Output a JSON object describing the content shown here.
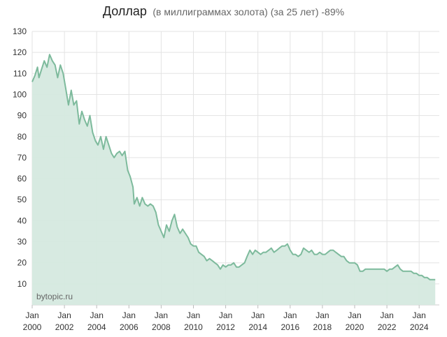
{
  "chart_data": {
    "type": "area",
    "title": "Доллар",
    "subtitle": "(в миллиграммах золота) (за 25 лет) -89%",
    "watermark": "bytopic.ru",
    "xlabel": "",
    "ylabel": "",
    "xlim": [
      2000.0,
      2025.25
    ],
    "ylim": [
      0,
      130
    ],
    "yticks": [
      10,
      20,
      30,
      40,
      50,
      60,
      70,
      80,
      90,
      100,
      110,
      120,
      130
    ],
    "xticks": [
      {
        "month": "Jan",
        "year": "2000",
        "x": 2000
      },
      {
        "month": "Jan",
        "year": "2002",
        "x": 2002
      },
      {
        "month": "Jan",
        "year": "2004",
        "x": 2004
      },
      {
        "month": "Jan",
        "year": "2006",
        "x": 2006
      },
      {
        "month": "Jan",
        "year": "2008",
        "x": 2008
      },
      {
        "month": "Jan",
        "year": "2010",
        "x": 2010
      },
      {
        "month": "Jan",
        "year": "2012",
        "x": 2012
      },
      {
        "month": "Jan",
        "year": "2014",
        "x": 2014
      },
      {
        "month": "Jan",
        "year": "2016",
        "x": 2016
      },
      {
        "month": "Jan",
        "year": "2018",
        "x": 2018
      },
      {
        "month": "Jan",
        "year": "2020",
        "x": 2020
      },
      {
        "month": "Jan",
        "year": "2022",
        "x": 2022
      },
      {
        "month": "Jan",
        "year": "2024",
        "x": 2024
      }
    ],
    "grid": true,
    "colors": {
      "line": "#7dba9c",
      "fill": "#d5e9df",
      "grid": "#e3e3e3"
    },
    "series": [
      {
        "points": [
          [
            2000.0,
            106
          ],
          [
            2000.17,
            109
          ],
          [
            2000.33,
            113
          ],
          [
            2000.42,
            108
          ],
          [
            2000.58,
            112
          ],
          [
            2000.75,
            116
          ],
          [
            2000.92,
            113
          ],
          [
            2001.08,
            119
          ],
          [
            2001.25,
            116
          ],
          [
            2001.42,
            114
          ],
          [
            2001.58,
            108
          ],
          [
            2001.75,
            114
          ],
          [
            2001.92,
            110
          ],
          [
            2002.08,
            103
          ],
          [
            2002.25,
            95
          ],
          [
            2002.42,
            102
          ],
          [
            2002.58,
            95
          ],
          [
            2002.75,
            97
          ],
          [
            2002.92,
            86
          ],
          [
            2003.08,
            92
          ],
          [
            2003.25,
            88
          ],
          [
            2003.42,
            85
          ],
          [
            2003.58,
            90
          ],
          [
            2003.75,
            82
          ],
          [
            2003.92,
            78
          ],
          [
            2004.08,
            76
          ],
          [
            2004.25,
            80
          ],
          [
            2004.42,
            74
          ],
          [
            2004.58,
            80
          ],
          [
            2004.75,
            76
          ],
          [
            2004.92,
            72
          ],
          [
            2005.08,
            70
          ],
          [
            2005.25,
            72
          ],
          [
            2005.42,
            73
          ],
          [
            2005.58,
            71
          ],
          [
            2005.75,
            73
          ],
          [
            2005.92,
            64
          ],
          [
            2006.08,
            61
          ],
          [
            2006.25,
            56
          ],
          [
            2006.33,
            48
          ],
          [
            2006.5,
            51
          ],
          [
            2006.67,
            47
          ],
          [
            2006.83,
            51
          ],
          [
            2007.0,
            48
          ],
          [
            2007.17,
            47
          ],
          [
            2007.33,
            48
          ],
          [
            2007.5,
            47
          ],
          [
            2007.67,
            44
          ],
          [
            2007.83,
            38
          ],
          [
            2008.0,
            35
          ],
          [
            2008.17,
            32
          ],
          [
            2008.33,
            38
          ],
          [
            2008.5,
            35
          ],
          [
            2008.67,
            40
          ],
          [
            2008.83,
            43
          ],
          [
            2009.0,
            37
          ],
          [
            2009.17,
            34
          ],
          [
            2009.33,
            36
          ],
          [
            2009.5,
            34
          ],
          [
            2009.67,
            32
          ],
          [
            2009.83,
            29
          ],
          [
            2010.0,
            28
          ],
          [
            2010.17,
            28
          ],
          [
            2010.33,
            25
          ],
          [
            2010.5,
            24
          ],
          [
            2010.67,
            23
          ],
          [
            2010.83,
            21
          ],
          [
            2011.0,
            22
          ],
          [
            2011.17,
            21
          ],
          [
            2011.33,
            20
          ],
          [
            2011.5,
            19
          ],
          [
            2011.67,
            17
          ],
          [
            2011.83,
            19
          ],
          [
            2012.0,
            18
          ],
          [
            2012.17,
            19
          ],
          [
            2012.33,
            19
          ],
          [
            2012.5,
            20
          ],
          [
            2012.67,
            18
          ],
          [
            2012.83,
            18
          ],
          [
            2013.0,
            19
          ],
          [
            2013.17,
            20
          ],
          [
            2013.33,
            23
          ],
          [
            2013.5,
            26
          ],
          [
            2013.67,
            24
          ],
          [
            2013.83,
            26
          ],
          [
            2014.0,
            25
          ],
          [
            2014.17,
            24
          ],
          [
            2014.33,
            25
          ],
          [
            2014.5,
            25
          ],
          [
            2014.67,
            26
          ],
          [
            2014.83,
            27
          ],
          [
            2015.0,
            25
          ],
          [
            2015.17,
            26
          ],
          [
            2015.33,
            27
          ],
          [
            2015.5,
            28
          ],
          [
            2015.67,
            28
          ],
          [
            2015.83,
            29
          ],
          [
            2016.0,
            26
          ],
          [
            2016.17,
            24
          ],
          [
            2016.33,
            24
          ],
          [
            2016.5,
            23
          ],
          [
            2016.67,
            24
          ],
          [
            2016.83,
            27
          ],
          [
            2017.0,
            26
          ],
          [
            2017.17,
            25
          ],
          [
            2017.33,
            26
          ],
          [
            2017.5,
            24
          ],
          [
            2017.67,
            24
          ],
          [
            2017.83,
            25
          ],
          [
            2018.0,
            24
          ],
          [
            2018.17,
            24
          ],
          [
            2018.33,
            25
          ],
          [
            2018.5,
            26
          ],
          [
            2018.67,
            26
          ],
          [
            2018.83,
            25
          ],
          [
            2019.0,
            24
          ],
          [
            2019.17,
            23
          ],
          [
            2019.33,
            23
          ],
          [
            2019.5,
            21
          ],
          [
            2019.67,
            20
          ],
          [
            2019.83,
            20
          ],
          [
            2020.0,
            20
          ],
          [
            2020.17,
            19
          ],
          [
            2020.33,
            16
          ],
          [
            2020.5,
            16
          ],
          [
            2020.67,
            17
          ],
          [
            2020.83,
            17
          ],
          [
            2021.0,
            17
          ],
          [
            2021.17,
            17
          ],
          [
            2021.33,
            17
          ],
          [
            2021.5,
            17
          ],
          [
            2021.67,
            17
          ],
          [
            2021.83,
            17
          ],
          [
            2022.0,
            16
          ],
          [
            2022.17,
            17
          ],
          [
            2022.33,
            17
          ],
          [
            2022.5,
            18
          ],
          [
            2022.67,
            19
          ],
          [
            2022.83,
            17
          ],
          [
            2023.0,
            16
          ],
          [
            2023.17,
            16
          ],
          [
            2023.33,
            16
          ],
          [
            2023.5,
            16
          ],
          [
            2023.67,
            15
          ],
          [
            2023.83,
            15
          ],
          [
            2024.0,
            14
          ],
          [
            2024.17,
            14
          ],
          [
            2024.33,
            13
          ],
          [
            2024.5,
            13
          ],
          [
            2024.67,
            12
          ],
          [
            2024.83,
            12
          ],
          [
            2025.0,
            12
          ]
        ]
      }
    ]
  }
}
